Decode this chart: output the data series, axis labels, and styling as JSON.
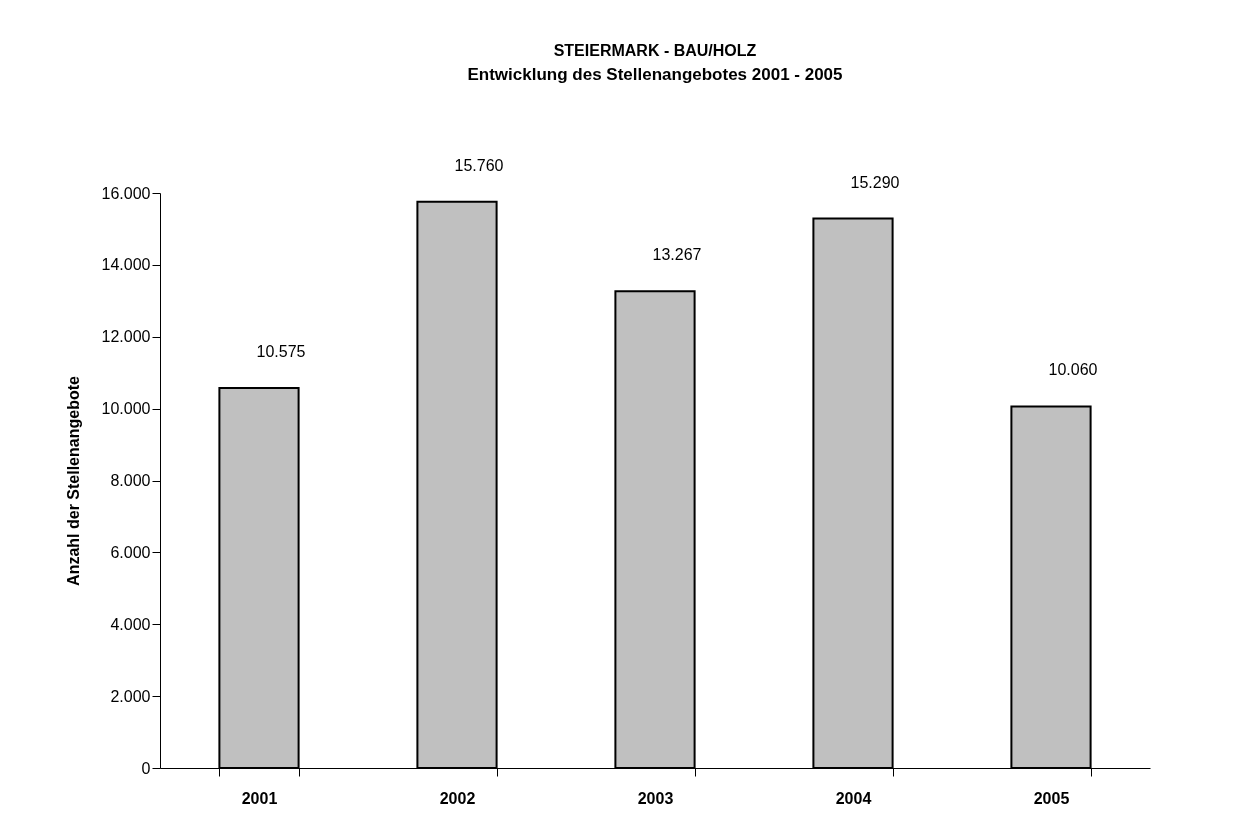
{
  "chart_data": {
    "type": "bar",
    "title": "STEIERMARK - BAU/HOLZ",
    "subtitle": "Entwicklung des Stellenangebotes 2001 - 2005",
    "ylabel": "Anzahl der Stellenangebote",
    "categories": [
      "2001",
      "2002",
      "2003",
      "2004",
      "2005"
    ],
    "values": [
      10575,
      15760,
      13267,
      15290,
      10060
    ],
    "color": "#c0c0c0",
    "value_labels": [
      "10.575",
      "15.760",
      "13.267",
      "15.290",
      "10.060"
    ],
    "ylim": [
      0,
      16000
    ],
    "yticks": [
      0,
      {
        "value": 2000,
        "label": "2.000"
      },
      {
        "value": 4000,
        "label": "4.000"
      },
      {
        "value": 6000,
        "label": "6.000"
      },
      {
        "value": 8000,
        "label": "8.000"
      },
      {
        "value": 10000,
        "label": "10.000"
      },
      {
        "value": 12000,
        "label": "12.000"
      },
      {
        "value": 14000,
        "label": "14.000"
      },
      {
        "value": 16000,
        "label": "16.000"
      }
    ],
    "grid": false
  }
}
